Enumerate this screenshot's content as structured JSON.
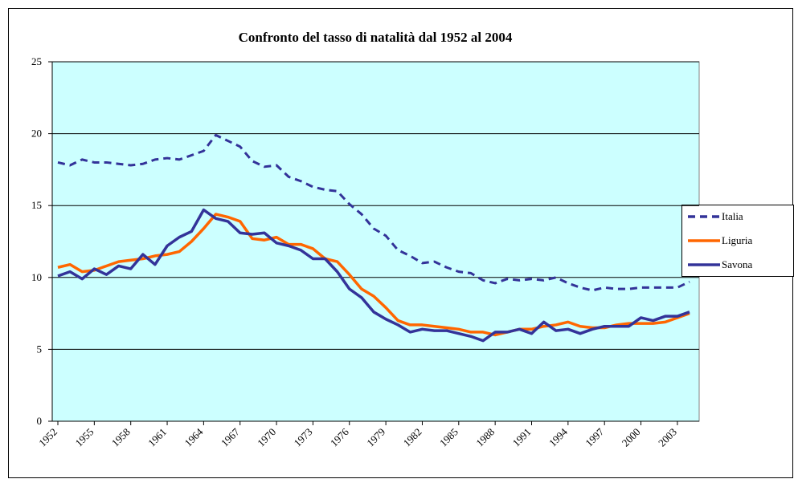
{
  "chart_data": {
    "type": "line",
    "title": "Confronto del tasso di natalità dal 1952 al 2004",
    "x": [
      1952,
      1953,
      1954,
      1955,
      1956,
      1957,
      1958,
      1959,
      1960,
      1961,
      1962,
      1963,
      1964,
      1965,
      1966,
      1967,
      1968,
      1969,
      1970,
      1971,
      1972,
      1973,
      1974,
      1975,
      1976,
      1977,
      1978,
      1979,
      1980,
      1981,
      1982,
      1983,
      1984,
      1985,
      1986,
      1987,
      1988,
      1989,
      1990,
      1991,
      1992,
      1993,
      1994,
      1995,
      1996,
      1997,
      1998,
      1999,
      2000,
      2001,
      2002,
      2003,
      2004
    ],
    "xlim": [
      1952,
      2004
    ],
    "xticks": [
      1952,
      1955,
      1958,
      1961,
      1964,
      1967,
      1970,
      1973,
      1976,
      1979,
      1982,
      1985,
      1988,
      1991,
      1994,
      1997,
      2000,
      2003
    ],
    "ylim": [
      0,
      25
    ],
    "yticks": [
      0,
      5,
      10,
      15,
      20,
      25
    ],
    "grid": true,
    "legend": "right",
    "series": [
      {
        "name": "Italia",
        "color": "#333399",
        "dash": true,
        "values": [
          18.0,
          17.8,
          18.2,
          18.0,
          18.0,
          17.9,
          17.8,
          17.9,
          18.2,
          18.3,
          18.2,
          18.5,
          18.8,
          19.9,
          19.5,
          19.1,
          18.1,
          17.7,
          17.8,
          17.0,
          16.7,
          16.3,
          16.1,
          16.0,
          15.1,
          14.4,
          13.4,
          12.9,
          11.9,
          11.5,
          11.0,
          11.1,
          10.7,
          10.4,
          10.3,
          9.8,
          9.6,
          9.9,
          9.8,
          9.9,
          9.8,
          10.0,
          9.6,
          9.3,
          9.1,
          9.3,
          9.2,
          9.2,
          9.3,
          9.3,
          9.3,
          9.3,
          9.7
        ]
      },
      {
        "name": "Liguria",
        "color": "#ff6600",
        "dash": false,
        "values": [
          10.7,
          10.9,
          10.4,
          10.5,
          10.8,
          11.1,
          11.2,
          11.3,
          11.5,
          11.6,
          11.8,
          12.5,
          13.4,
          14.4,
          14.2,
          13.9,
          12.7,
          12.6,
          12.8,
          12.3,
          12.3,
          12.0,
          11.3,
          11.1,
          10.2,
          9.2,
          8.7,
          7.9,
          7.0,
          6.7,
          6.7,
          6.6,
          6.5,
          6.4,
          6.2,
          6.2,
          6.0,
          6.2,
          6.4,
          6.4,
          6.6,
          6.7,
          6.9,
          6.6,
          6.5,
          6.5,
          6.7,
          6.8,
          6.8,
          6.8,
          6.9,
          7.2,
          7.5
        ]
      },
      {
        "name": "Savona",
        "color": "#333399",
        "dash": false,
        "values": [
          10.1,
          10.4,
          9.9,
          10.6,
          10.2,
          10.8,
          10.6,
          11.6,
          10.9,
          12.2,
          12.8,
          13.2,
          14.7,
          14.1,
          13.9,
          13.1,
          13.0,
          13.1,
          12.4,
          12.2,
          11.9,
          11.3,
          11.3,
          10.4,
          9.2,
          8.6,
          7.6,
          7.1,
          6.7,
          6.2,
          6.4,
          6.3,
          6.3,
          6.1,
          5.9,
          5.6,
          6.2,
          6.2,
          6.4,
          6.1,
          6.9,
          6.3,
          6.4,
          6.1,
          6.4,
          6.6,
          6.6,
          6.6,
          7.2,
          7.0,
          7.3,
          7.3,
          7.6
        ]
      }
    ]
  }
}
